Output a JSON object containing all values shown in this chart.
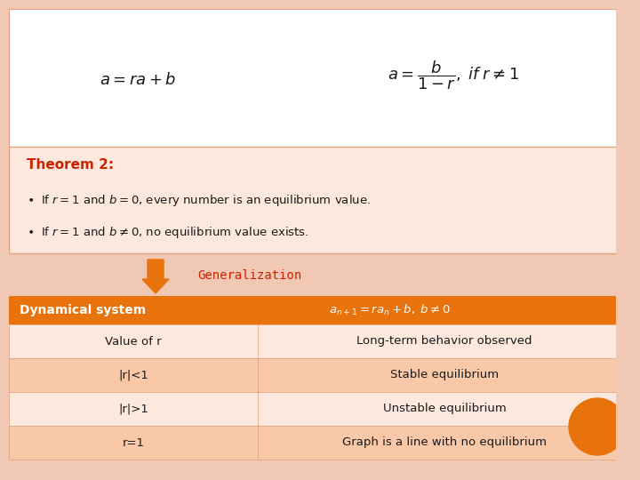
{
  "bg_salmon": "#f0c8b4",
  "bg_white": "#ffffff",
  "bg_theorem": "#fce8dc",
  "orange_header": "#e8720c",
  "light_row1": "#fce8dc",
  "light_row2": "#f9d0b8",
  "red_text": "#cc2200",
  "dark_text": "#1a1a1a",
  "white": "#ffffff",
  "border_color": "#e0a080",
  "table_col1": [
    "Value of r",
    "|r|<1",
    "|r|>1",
    "r=1"
  ],
  "table_col2": [
    "Long-term behavior observed",
    "Stable equilibrium",
    "Unstable equilibrium",
    "Graph is a line with no equilibrium"
  ]
}
